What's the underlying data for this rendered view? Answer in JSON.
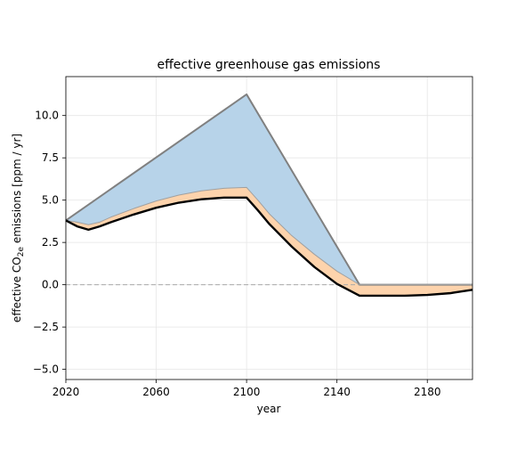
{
  "chart_data": {
    "type": "area",
    "title": "effective greenhouse gas emissions",
    "xlabel": "year",
    "ylabel": {
      "prefix": "effective CO",
      "subscript": "2e",
      "suffix": " emissions [ppm / yr]"
    },
    "xlim": [
      2020,
      2200
    ],
    "ylim": [
      -5.6,
      12.3
    ],
    "xticks": [
      2020,
      2060,
      2100,
      2140,
      2180
    ],
    "xtick_labels": [
      "2020",
      "2060",
      "2100",
      "2140",
      "2180"
    ],
    "yticks": [
      -5.0,
      -2.5,
      0.0,
      2.5,
      5.0,
      7.5,
      10.0
    ],
    "ytick_labels": [
      "−5.0",
      "−2.5",
      "0.0",
      "2.5",
      "5.0",
      "7.5",
      "10.0"
    ],
    "grid": true,
    "legend": "none",
    "zero_line": {
      "y": 0,
      "style": "dashed",
      "color": "#aaaaaa"
    },
    "series": [
      {
        "role": "baseline-upper",
        "color": "#808080",
        "x": [
          2020,
          2100,
          2150,
          2200
        ],
        "y": [
          3.8,
          11.25,
          0.0,
          0.0
        ]
      },
      {
        "role": "middle",
        "color": "#a0a0a0",
        "x": [
          2020,
          2025,
          2030,
          2035,
          2040,
          2050,
          2060,
          2070,
          2080,
          2090,
          2100,
          2105,
          2110,
          2120,
          2130,
          2140,
          2150,
          2160,
          2170,
          2180,
          2190,
          2200
        ],
        "y": [
          3.8,
          3.7,
          3.55,
          3.7,
          4.0,
          4.5,
          4.95,
          5.3,
          5.55,
          5.7,
          5.75,
          5.0,
          4.2,
          2.9,
          1.8,
          0.8,
          0.0,
          0.0,
          0.0,
          0.0,
          0.0,
          0.0
        ]
      },
      {
        "role": "result",
        "color": "#000000",
        "x": [
          2020,
          2025,
          2030,
          2035,
          2040,
          2050,
          2060,
          2070,
          2080,
          2090,
          2100,
          2105,
          2110,
          2120,
          2130,
          2140,
          2150,
          2160,
          2170,
          2180,
          2190,
          2195,
          2200
        ],
        "y": [
          3.8,
          3.45,
          3.25,
          3.45,
          3.7,
          4.15,
          4.55,
          4.85,
          5.05,
          5.15,
          5.15,
          4.4,
          3.6,
          2.25,
          1.05,
          0.05,
          -0.65,
          -0.65,
          -0.65,
          -0.6,
          -0.5,
          -0.4,
          -0.3
        ]
      }
    ],
    "fills": [
      {
        "between": [
          "baseline-upper",
          "middle"
        ],
        "color": "#b7d3e9"
      },
      {
        "between": [
          "middle",
          "result"
        ],
        "color": "#fdd3ac"
      }
    ]
  }
}
